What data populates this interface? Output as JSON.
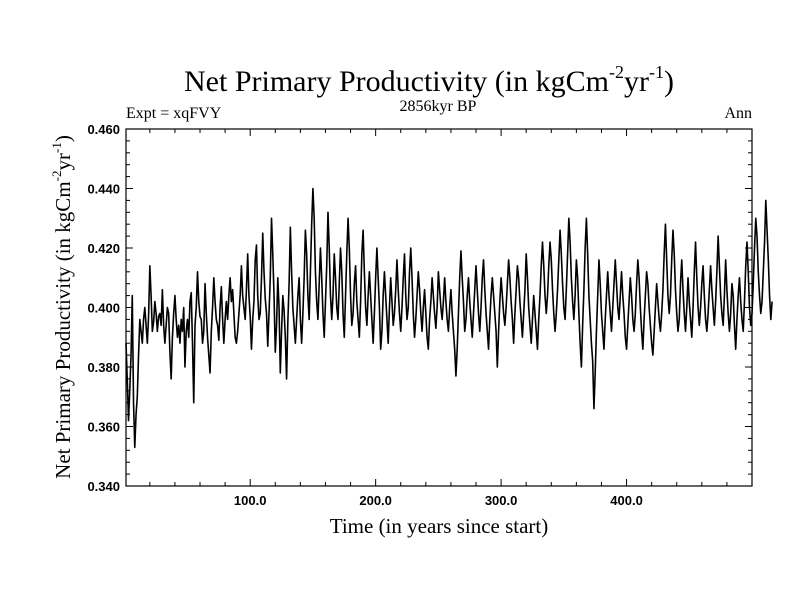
{
  "chart_data": {
    "type": "line",
    "title": {
      "main": "Net Primary Productivity (in kgCm",
      "exp1": "-2",
      "mid": "yr",
      "exp2": "-1",
      "close": ")"
    },
    "subtitle_left": "Expt = xqFVY",
    "subtitle_center": "2856kyr BP",
    "subtitle_right": "Ann",
    "xlabel": "Time (in years since start)",
    "ylabel": {
      "main": "Net Primary Productivity (in kgCm",
      "exp1": "-2",
      "mid": "yr",
      "exp2": "-1",
      "close": ")"
    },
    "xlim": [
      1,
      500
    ],
    "ylim": [
      0.34,
      0.46
    ],
    "xticks": [
      100,
      200,
      300,
      400
    ],
    "xtick_labels": [
      "100.0",
      "200.0",
      "300.0",
      "400.0"
    ],
    "yticks": [
      0.34,
      0.36,
      0.38,
      0.4,
      0.42,
      0.44,
      0.46
    ],
    "ytick_labels": [
      "0.340",
      "0.360",
      "0.380",
      "0.400",
      "0.420",
      "0.440",
      "0.460"
    ],
    "series": [
      {
        "name": "Net Primary Productivity",
        "x_start": 1,
        "x_step": 1,
        "line_color": "#000000",
        "values": [
          0.388,
          0.376,
          0.362,
          0.372,
          0.384,
          0.404,
          0.368,
          0.353,
          0.364,
          0.37,
          0.384,
          0.396,
          0.392,
          0.388,
          0.396,
          0.4,
          0.394,
          0.388,
          0.397,
          0.414,
          0.404,
          0.392,
          0.395,
          0.402,
          0.398,
          0.392,
          0.397,
          0.398,
          0.394,
          0.406,
          0.394,
          0.388,
          0.394,
          0.4,
          0.398,
          0.385,
          0.376,
          0.39,
          0.398,
          0.404,
          0.396,
          0.39,
          0.394,
          0.388,
          0.396,
          0.392,
          0.4,
          0.38,
          0.392,
          0.396,
          0.39,
          0.402,
          0.405,
          0.388,
          0.368,
          0.394,
          0.4,
          0.412,
          0.402,
          0.397,
          0.396,
          0.388,
          0.392,
          0.408,
          0.398,
          0.39,
          0.384,
          0.378,
          0.392,
          0.4,
          0.41,
          0.402,
          0.396,
          0.394,
          0.389,
          0.4,
          0.407,
          0.396,
          0.388,
          0.396,
          0.402,
          0.396,
          0.404,
          0.41,
          0.402,
          0.406,
          0.398,
          0.39,
          0.388,
          0.392,
          0.398,
          0.404,
          0.414,
          0.404,
          0.4,
          0.396,
          0.406,
          0.418,
          0.404,
          0.397,
          0.386,
          0.396,
          0.402,
          0.416,
          0.421,
          0.404,
          0.396,
          0.398,
          0.41,
          0.425,
          0.412,
          0.403,
          0.398,
          0.387,
          0.398,
          0.41,
          0.43,
          0.418,
          0.404,
          0.385,
          0.394,
          0.41,
          0.4,
          0.378,
          0.392,
          0.404,
          0.399,
          0.39,
          0.376,
          0.395,
          0.408,
          0.427,
          0.412,
          0.4,
          0.394,
          0.388,
          0.396,
          0.404,
          0.41,
          0.396,
          0.388,
          0.398,
          0.41,
          0.426,
          0.418,
          0.404,
          0.396,
          0.412,
          0.428,
          0.44,
          0.43,
          0.412,
          0.402,
          0.396,
          0.408,
          0.42,
          0.41,
          0.398,
          0.39,
          0.402,
          0.414,
          0.432,
          0.42,
          0.404,
          0.396,
          0.404,
          0.418,
          0.41,
          0.4,
          0.396,
          0.408,
          0.42,
          0.412,
          0.398,
          0.39,
          0.404,
          0.418,
          0.43,
          0.42,
          0.404,
          0.394,
          0.398,
          0.408,
          0.414,
          0.402,
          0.396,
          0.39,
          0.402,
          0.418,
          0.426,
          0.412,
          0.4,
          0.394,
          0.404,
          0.412,
          0.404,
          0.396,
          0.388,
          0.398,
          0.41,
          0.42,
          0.41,
          0.4,
          0.386,
          0.392,
          0.404,
          0.412,
          0.404,
          0.396,
          0.388,
          0.4,
          0.41,
          0.402,
          0.394,
          0.398,
          0.406,
          0.416,
          0.406,
          0.398,
          0.392,
          0.4,
          0.41,
          0.418,
          0.404,
          0.396,
          0.4,
          0.412,
          0.42,
          0.41,
          0.398,
          0.39,
          0.396,
          0.404,
          0.412,
          0.406,
          0.398,
          0.392,
          0.4,
          0.406,
          0.398,
          0.39,
          0.386,
          0.396,
          0.402,
          0.41,
          0.404,
          0.398,
          0.393,
          0.4,
          0.412,
          0.406,
          0.4,
          0.396,
          0.402,
          0.41,
          0.402,
          0.396,
          0.392,
          0.4,
          0.406,
          0.398,
          0.392,
          0.386,
          0.377,
          0.386,
          0.398,
          0.41,
          0.419,
          0.41,
          0.402,
          0.392,
          0.396,
          0.404,
          0.41,
          0.402,
          0.396,
          0.39,
          0.398,
          0.406,
          0.414,
          0.406,
          0.398,
          0.392,
          0.4,
          0.41,
          0.416,
          0.406,
          0.398,
          0.392,
          0.386,
          0.396,
          0.404,
          0.41,
          0.404,
          0.398,
          0.392,
          0.38,
          0.392,
          0.402,
          0.41,
          0.404,
          0.398,
          0.394,
          0.4,
          0.408,
          0.416,
          0.41,
          0.402,
          0.396,
          0.388,
          0.398,
          0.406,
          0.414,
          0.41,
          0.402,
          0.396,
          0.39,
          0.398,
          0.406,
          0.418,
          0.41,
          0.4,
          0.394,
          0.388,
          0.396,
          0.404,
          0.398,
          0.392,
          0.386,
          0.396,
          0.404,
          0.414,
          0.422,
          0.414,
          0.404,
          0.398,
          0.404,
          0.414,
          0.422,
          0.416,
          0.406,
          0.398,
          0.392,
          0.398,
          0.406,
          0.416,
          0.426,
          0.418,
          0.408,
          0.4,
          0.396,
          0.406,
          0.418,
          0.43,
          0.422,
          0.41,
          0.402,
          0.396,
          0.404,
          0.416,
          0.41,
          0.398,
          0.388,
          0.38,
          0.394,
          0.406,
          0.42,
          0.43,
          0.418,
          0.404,
          0.396,
          0.388,
          0.382,
          0.366,
          0.378,
          0.392,
          0.404,
          0.416,
          0.408,
          0.398,
          0.392,
          0.386,
          0.396,
          0.404,
          0.412,
          0.404,
          0.398,
          0.392,
          0.4,
          0.408,
          0.416,
          0.408,
          0.4,
          0.396,
          0.404,
          0.412,
          0.404,
          0.398,
          0.39,
          0.386,
          0.394,
          0.402,
          0.41,
          0.404,
          0.396,
          0.392,
          0.398,
          0.408,
          0.416,
          0.41,
          0.4,
          0.392,
          0.386,
          0.396,
          0.404,
          0.412,
          0.408,
          0.4,
          0.394,
          0.388,
          0.384,
          0.392,
          0.4,
          0.408,
          0.402,
          0.396,
          0.392,
          0.398,
          0.406,
          0.418,
          0.428,
          0.416,
          0.404,
          0.398,
          0.404,
          0.416,
          0.426,
          0.418,
          0.406,
          0.398,
          0.392,
          0.396,
          0.408,
          0.416,
          0.406,
          0.398,
          0.392,
          0.4,
          0.41,
          0.402,
          0.396,
          0.39,
          0.4,
          0.412,
          0.422,
          0.41,
          0.4,
          0.394,
          0.4,
          0.408,
          0.414,
          0.404,
          0.396,
          0.392,
          0.398,
          0.406,
          0.414,
          0.406,
          0.4,
          0.394,
          0.402,
          0.412,
          0.424,
          0.414,
          0.404,
          0.398,
          0.394,
          0.404,
          0.416,
          0.406,
          0.398,
          0.392,
          0.398,
          0.408,
          0.404,
          0.394,
          0.386,
          0.396,
          0.404,
          0.41,
          0.402,
          0.396,
          0.392,
          0.402,
          0.414,
          0.422,
          0.412,
          0.4,
          0.394,
          0.398,
          0.408,
          0.42,
          0.43,
          0.424,
          0.412,
          0.404,
          0.398,
          0.402,
          0.412,
          0.422,
          0.436,
          0.426,
          0.416,
          0.404,
          0.396,
          0.402
        ]
      }
    ]
  }
}
